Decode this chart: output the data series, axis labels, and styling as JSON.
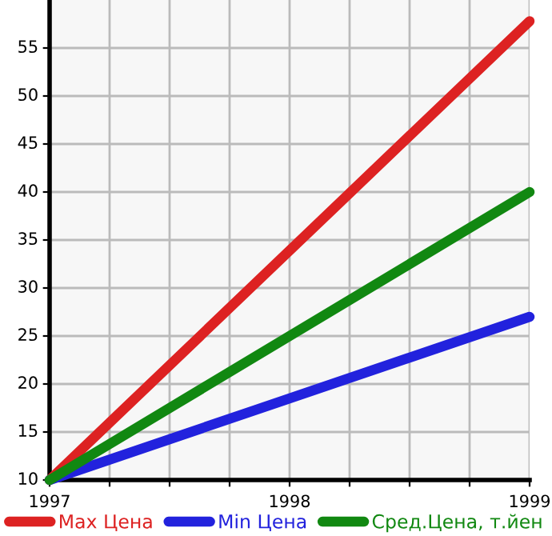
{
  "chart_data": {
    "type": "line",
    "x": [
      1997,
      1999
    ],
    "series": [
      {
        "name": "Max Цена",
        "color": "#dd2222",
        "values": [
          10,
          57.8
        ]
      },
      {
        "name": "Min Цена",
        "color": "#2222dd",
        "values": [
          10,
          27
        ]
      },
      {
        "name": "Сред.Цена, т.йен",
        "color": "#118811",
        "values": [
          10,
          40
        ]
      }
    ],
    "xlim": [
      1997,
      1999
    ],
    "xticks": [
      1997,
      {
        "value": 1997.25,
        "label": null
      },
      {
        "value": 1997.5,
        "label": null
      },
      {
        "value": 1997.75,
        "label": null
      },
      1998,
      {
        "value": 1998.25,
        "label": null
      },
      {
        "value": 1998.5,
        "label": null
      },
      {
        "value": 1998.75,
        "label": null
      },
      1999
    ],
    "ylim": [
      10,
      60
    ],
    "yticks": [
      10,
      15,
      20,
      25,
      30,
      35,
      40,
      45,
      50,
      55
    ],
    "grid": true,
    "legend": "bottom",
    "marker": "none",
    "line_style": "solid"
  }
}
